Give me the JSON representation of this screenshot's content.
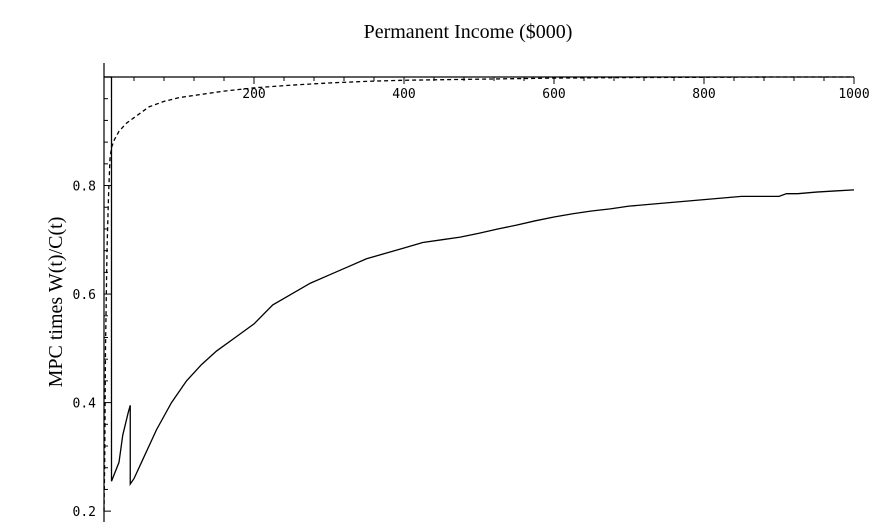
{
  "chart_data": {
    "type": "line",
    "title": "Permanent Income ($000)",
    "xlabel": "",
    "ylabel": "MPC times W(t)/C(t)",
    "xlim": [
      0,
      1000
    ],
    "ylim": [
      0.18,
      1.0
    ],
    "x_axis_position": "top",
    "x_ticks": [
      200,
      400,
      600,
      800,
      1000
    ],
    "x_tick_labels": [
      "200",
      "400",
      "600",
      "800",
      "1000"
    ],
    "y_ticks": [
      0.2,
      0.4,
      0.6,
      0.8
    ],
    "y_tick_labels": [
      "0.2",
      "0.4",
      "0.6",
      "0.8"
    ],
    "grid": false,
    "legend": "none",
    "series": [
      {
        "style": "solid",
        "x": [
          0,
          8,
          10,
          10,
          20,
          25,
          32,
          35,
          35,
          40,
          50,
          70,
          90,
          110,
          130,
          150,
          175,
          200,
          225,
          250,
          275,
          300,
          325,
          350,
          375,
          400,
          425,
          450,
          475,
          500,
          525,
          550,
          575,
          600,
          625,
          650,
          675,
          700,
          725,
          750,
          775,
          800,
          825,
          850,
          875,
          900,
          910,
          925,
          950,
          975,
          1000
        ],
        "y": [
          1.0,
          1.0,
          1.0,
          0.255,
          0.29,
          0.34,
          0.38,
          0.395,
          0.25,
          0.26,
          0.29,
          0.35,
          0.4,
          0.44,
          0.47,
          0.495,
          0.52,
          0.545,
          0.58,
          0.6,
          0.62,
          0.635,
          0.65,
          0.665,
          0.675,
          0.685,
          0.695,
          0.7,
          0.705,
          0.712,
          0.72,
          0.727,
          0.735,
          0.742,
          0.748,
          0.753,
          0.757,
          0.762,
          0.765,
          0.768,
          0.771,
          0.774,
          0.777,
          0.78,
          0.78,
          0.78,
          0.785,
          0.785,
          0.788,
          0.79,
          0.792
        ]
      },
      {
        "style": "dashed",
        "x": [
          0,
          1,
          2,
          4,
          6,
          8,
          10,
          14,
          20,
          30,
          40,
          50,
          60,
          80,
          100,
          130,
          160,
          200,
          250,
          300,
          350,
          400,
          500,
          600,
          700,
          800,
          900,
          1000
        ],
        "y": [
          0.2,
          0.3,
          0.5,
          0.68,
          0.78,
          0.85,
          0.87,
          0.885,
          0.9,
          0.915,
          0.925,
          0.935,
          0.945,
          0.955,
          0.962,
          0.968,
          0.974,
          0.98,
          0.985,
          0.989,
          0.992,
          0.994,
          0.996,
          0.998,
          0.999,
          0.9995,
          1.0,
          1.0
        ]
      }
    ]
  }
}
